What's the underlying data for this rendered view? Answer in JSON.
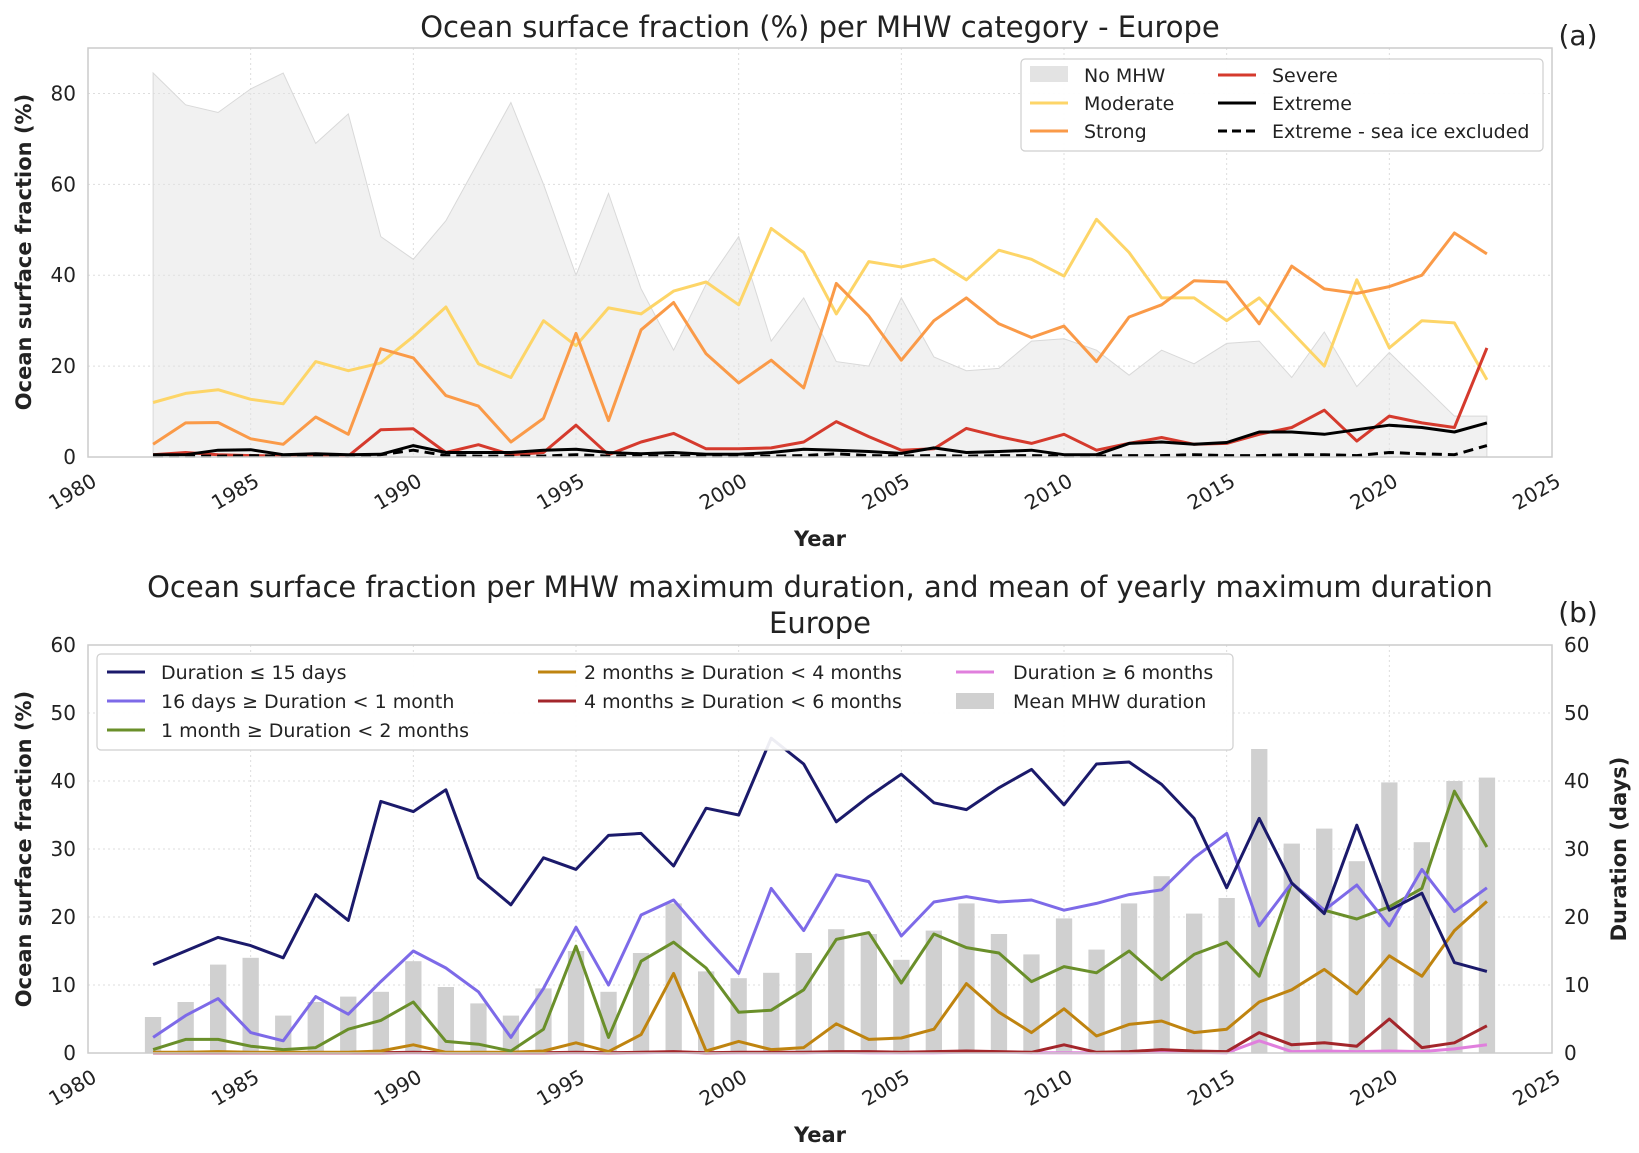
{
  "panels": {
    "a": {
      "label": "(a)"
    },
    "b": {
      "label": "(b)"
    }
  },
  "colors": {
    "no_mhw": "#e3e3e3",
    "moderate": "#fdd568",
    "strong": "#fa9a48",
    "severe": "#d53a2d",
    "extreme": "#000000",
    "d15": "#1b1a6b",
    "d1m": "#7d6ae8",
    "d2m": "#6a8f2a",
    "d4m": "#bf8410",
    "d6m": "#a3262b",
    "d6p": "#e07fdd",
    "bars": "#d0d0d0"
  },
  "chart_data": [
    {
      "id": "a",
      "type": "line",
      "title": "Ocean surface fraction (%) per MHW category - Europe",
      "xlabel": "Year",
      "ylabel": "Ocean surface fraction (%)",
      "xlim": [
        1980,
        2025
      ],
      "ylim": [
        0,
        90
      ],
      "xticks": [
        1980,
        1985,
        1990,
        1995,
        2000,
        2005,
        2010,
        2015,
        2020,
        2025
      ],
      "yticks": [
        0,
        20,
        40,
        60,
        80
      ],
      "grid": true,
      "legend_position": "top-right",
      "x": [
        1982,
        1983,
        1984,
        1985,
        1986,
        1987,
        1988,
        1989,
        1990,
        1991,
        1992,
        1993,
        1994,
        1995,
        1996,
        1997,
        1998,
        1999,
        2000,
        2001,
        2002,
        2003,
        2004,
        2005,
        2006,
        2007,
        2008,
        2009,
        2010,
        2011,
        2012,
        2013,
        2014,
        2015,
        2016,
        2017,
        2018,
        2019,
        2020,
        2021,
        2022,
        2023
      ],
      "series": [
        {
          "name": "No MHW",
          "kind": "area",
          "color_key": "no_mhw",
          "values": [
            84.5,
            77.5,
            75.8,
            81.0,
            84.5,
            69.0,
            75.5,
            48.5,
            43.5,
            52.0,
            65.0,
            78.0,
            60.0,
            40.0,
            58.0,
            37.0,
            23.5,
            38.0,
            48.5,
            25.5,
            35.0,
            21.0,
            20.0,
            35.0,
            22.0,
            19.0,
            19.5,
            25.5,
            26.0,
            23.5,
            18.0,
            23.5,
            20.5,
            25.0,
            25.5,
            17.5,
            27.5,
            15.5,
            23.0,
            16.0,
            9.0,
            9.0
          ]
        },
        {
          "name": "Moderate",
          "kind": "line",
          "color_key": "moderate",
          "values": [
            12.0,
            14.0,
            14.8,
            12.7,
            11.7,
            21.0,
            19.0,
            20.7,
            26.5,
            33.0,
            20.5,
            17.5,
            30.0,
            24.5,
            32.8,
            31.5,
            36.5,
            38.5,
            33.5,
            50.3,
            45.0,
            31.5,
            43.0,
            41.8,
            43.5,
            39.0,
            45.5,
            43.5,
            39.8,
            52.3,
            45.0,
            35.0,
            35.0,
            30.0,
            35.0,
            27.5,
            20.0,
            39.0,
            24.0,
            30.0,
            29.5,
            17.0
          ]
        },
        {
          "name": "Strong",
          "kind": "line",
          "color_key": "strong",
          "values": [
            2.8,
            7.5,
            7.6,
            4.0,
            2.8,
            8.8,
            5.0,
            23.8,
            21.8,
            13.5,
            11.2,
            3.3,
            8.5,
            27.2,
            8.0,
            28.0,
            34.0,
            22.7,
            16.3,
            21.3,
            15.2,
            38.2,
            31.0,
            21.3,
            30.0,
            35.0,
            29.3,
            26.3,
            28.8,
            21.0,
            30.8,
            33.5,
            38.8,
            38.5,
            29.3,
            42.0,
            37.0,
            36.0,
            37.5,
            40.0,
            49.3,
            44.7
          ]
        },
        {
          "name": "Severe",
          "kind": "line",
          "color_key": "severe",
          "values": [
            0.5,
            1.0,
            0.5,
            0.3,
            0.2,
            0.3,
            0.2,
            6.0,
            6.2,
            1.0,
            2.7,
            0.5,
            1.0,
            7.0,
            0.5,
            3.3,
            5.2,
            1.8,
            1.8,
            2.0,
            3.3,
            7.8,
            4.5,
            1.5,
            1.8,
            6.3,
            4.5,
            3.0,
            5.0,
            1.5,
            3.0,
            4.3,
            2.8,
            3.0,
            5.0,
            6.5,
            10.3,
            3.5,
            9.0,
            7.5,
            6.5,
            24.0
          ]
        },
        {
          "name": "Extreme",
          "kind": "line",
          "color_key": "extreme",
          "values": [
            0.5,
            0.5,
            1.5,
            1.6,
            0.5,
            0.7,
            0.5,
            0.6,
            2.5,
            1.0,
            1.0,
            1.0,
            1.5,
            1.7,
            1.0,
            0.7,
            1.0,
            0.6,
            0.6,
            1.0,
            1.7,
            1.5,
            1.2,
            0.8,
            2.0,
            1.0,
            1.2,
            1.5,
            0.5,
            0.5,
            3.0,
            3.3,
            2.8,
            3.2,
            5.5,
            5.5,
            5.0,
            6.0,
            7.0,
            6.5,
            5.5,
            7.5
          ]
        },
        {
          "name": "Extreme - sea ice excluded",
          "kind": "dashed",
          "color_key": "extreme",
          "values": [
            0.2,
            0.2,
            0.2,
            0.3,
            0.2,
            0.3,
            0.2,
            0.5,
            1.5,
            0.3,
            0.2,
            0.2,
            0.2,
            0.5,
            0.2,
            0.2,
            0.2,
            0.2,
            0.2,
            0.2,
            0.3,
            0.7,
            0.3,
            0.2,
            0.3,
            0.2,
            0.3,
            0.3,
            0.2,
            0.2,
            0.3,
            0.3,
            0.5,
            0.3,
            0.3,
            0.5,
            0.5,
            0.3,
            1.0,
            0.7,
            0.5,
            2.5
          ]
        }
      ]
    },
    {
      "id": "b",
      "type": "line",
      "title_line1": "Ocean surface fraction per MHW maximum duration, and mean of yearly maximum duration",
      "title_line2": "Europe",
      "xlabel": "Year",
      "ylabel": "Ocean surface fraction (%)",
      "ylabel_right": "Duration (days)",
      "xlim": [
        1980,
        2025
      ],
      "ylim": [
        0,
        60
      ],
      "ylim_right": [
        0,
        60
      ],
      "xticks": [
        1980,
        1985,
        1990,
        1995,
        2000,
        2005,
        2010,
        2015,
        2020,
        2025
      ],
      "yticks": [
        0,
        10,
        20,
        30,
        40,
        50,
        60
      ],
      "grid": true,
      "legend_position": "top-left",
      "x": [
        1982,
        1983,
        1984,
        1985,
        1986,
        1987,
        1988,
        1989,
        1990,
        1991,
        1992,
        1993,
        1994,
        1995,
        1996,
        1997,
        1998,
        1999,
        2000,
        2001,
        2002,
        2003,
        2004,
        2005,
        2006,
        2007,
        2008,
        2009,
        2010,
        2011,
        2012,
        2013,
        2014,
        2015,
        2016,
        2017,
        2018,
        2019,
        2020,
        2021,
        2022,
        2023
      ],
      "bars": {
        "name": "Mean MHW duration",
        "color_key": "bars",
        "axis": "right",
        "values": [
          5.3,
          7.5,
          13.0,
          14.0,
          5.5,
          7.5,
          8.3,
          9.0,
          13.5,
          9.7,
          7.3,
          5.5,
          9.5,
          15.0,
          9.0,
          14.7,
          22.0,
          12.0,
          11.0,
          11.8,
          14.7,
          18.2,
          17.5,
          13.7,
          18.0,
          22.0,
          17.5,
          14.5,
          19.8,
          15.2,
          22.0,
          26.0,
          20.5,
          22.8,
          44.7,
          30.8,
          33.0,
          28.2,
          39.8,
          31.0,
          40.0,
          40.5
        ]
      },
      "series": [
        {
          "name": "Duration ≤ 15 days",
          "color_key": "d15",
          "values": [
            13.0,
            15.0,
            17.0,
            15.8,
            14.0,
            23.3,
            19.5,
            37.0,
            35.5,
            38.7,
            25.8,
            21.8,
            28.7,
            27.0,
            32.0,
            32.3,
            27.5,
            36.0,
            35.0,
            46.3,
            42.5,
            34.0,
            37.7,
            41.0,
            36.8,
            35.8,
            39.0,
            41.7,
            36.5,
            42.5,
            42.8,
            39.5,
            34.5,
            24.3,
            34.5,
            25.0,
            20.5,
            33.5,
            21.0,
            23.5,
            13.3,
            12.0
          ]
        },
        {
          "name": "16 days ≥ Duration < 1 month",
          "color_key": "d1m",
          "values": [
            2.3,
            5.5,
            8.0,
            3.0,
            1.8,
            8.3,
            5.7,
            10.5,
            15.0,
            12.5,
            9.0,
            2.3,
            9.5,
            18.5,
            10.0,
            20.3,
            22.5,
            17.0,
            11.7,
            24.2,
            18.0,
            26.2,
            25.2,
            17.2,
            22.2,
            23.0,
            22.2,
            22.5,
            21.0,
            22.0,
            23.3,
            24.0,
            28.7,
            32.3,
            18.7,
            25.0,
            21.0,
            24.7,
            18.7,
            27.0,
            20.8,
            24.3
          ]
        },
        {
          "name": "1 month ≥ Duration < 2 months",
          "color_key": "d2m",
          "values": [
            0.5,
            2.0,
            2.0,
            1.0,
            0.5,
            0.8,
            3.5,
            4.8,
            7.5,
            1.7,
            1.3,
            0.3,
            3.5,
            15.7,
            2.3,
            13.5,
            16.3,
            12.5,
            6.0,
            6.3,
            9.3,
            16.7,
            17.7,
            10.3,
            17.5,
            15.5,
            14.7,
            10.5,
            12.7,
            11.8,
            15.0,
            10.8,
            14.5,
            16.3,
            11.3,
            25.0,
            21.0,
            19.7,
            21.5,
            24.2,
            38.5,
            30.3
          ]
        },
        {
          "name": "2 months ≥ Duration < 4 months",
          "color_key": "d4m",
          "values": [
            0.1,
            0.1,
            0.2,
            0.1,
            0.1,
            0.1,
            0.1,
            0.3,
            1.2,
            0.1,
            0.1,
            0.1,
            0.3,
            1.5,
            0.2,
            2.7,
            11.7,
            0.3,
            1.7,
            0.5,
            0.8,
            4.3,
            2.0,
            2.2,
            3.5,
            10.2,
            6.0,
            3.0,
            6.5,
            2.5,
            4.2,
            4.7,
            3.0,
            3.5,
            7.5,
            9.3,
            12.3,
            8.7,
            14.3,
            11.3,
            18.0,
            22.3
          ]
        },
        {
          "name": "4 months ≥ Duration < 6 months",
          "color_key": "d6m",
          "values": [
            0.05,
            0.05,
            0.05,
            0.05,
            0.05,
            0.05,
            0.05,
            0.05,
            0.1,
            0.05,
            0.05,
            0.05,
            0.05,
            0.1,
            0.05,
            0.1,
            0.2,
            0.05,
            0.1,
            0.1,
            0.1,
            0.2,
            0.2,
            0.1,
            0.2,
            0.3,
            0.2,
            0.1,
            1.2,
            0.1,
            0.2,
            0.5,
            0.3,
            0.2,
            3.0,
            1.2,
            1.5,
            1.0,
            5.0,
            0.8,
            1.5,
            4.0
          ]
        },
        {
          "name": "Duration ≥ 6 months",
          "color_key": "d6p",
          "values": [
            0.02,
            0.02,
            0.02,
            0.02,
            0.02,
            0.02,
            0.02,
            0.02,
            0.05,
            0.02,
            0.02,
            0.02,
            0.02,
            0.05,
            0.02,
            0.05,
            0.1,
            0.02,
            0.05,
            0.05,
            0.05,
            0.1,
            0.05,
            0.05,
            0.05,
            0.1,
            0.1,
            0.05,
            0.05,
            0.05,
            0.05,
            0.1,
            0.1,
            0.05,
            1.8,
            0.2,
            0.3,
            0.2,
            0.3,
            0.2,
            0.6,
            1.2
          ]
        }
      ]
    }
  ]
}
